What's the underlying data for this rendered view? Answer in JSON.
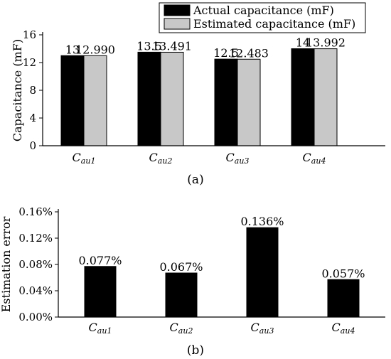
{
  "chart_data": [
    {
      "type": "bar",
      "panel_label": "(a)",
      "ylabel": "Capacitance (mF)",
      "ylim": [
        0,
        16
      ],
      "yticks": [
        "0",
        "4",
        "8",
        "12",
        "16"
      ],
      "categories": [
        {
          "base": "C",
          "sub": "au1"
        },
        {
          "base": "C",
          "sub": "au2"
        },
        {
          "base": "C",
          "sub": "au3"
        },
        {
          "base": "C",
          "sub": "au4"
        }
      ],
      "series": [
        {
          "name": "Actual capacitance (mF)",
          "color": "#000000",
          "values": [
            13,
            13.5,
            12.5,
            14
          ],
          "labels": [
            "13",
            "13.5",
            "12.5",
            "14"
          ]
        },
        {
          "name": "Estimated capacitance (mF)",
          "color": "#c8c8c8",
          "values": [
            12.99,
            13.491,
            12.483,
            13.992
          ],
          "labels": [
            "12.990",
            "13.491",
            "12.483",
            "13.992"
          ]
        }
      ],
      "legend": "top-right"
    },
    {
      "type": "bar",
      "panel_label": "(b)",
      "ylabel": "Estimation error",
      "ylim": [
        0,
        0.16
      ],
      "yticks": [
        "0.00%",
        "0.04%",
        "0.08%",
        "0.12%",
        "0.16%"
      ],
      "categories": [
        {
          "base": "C",
          "sub": "au1"
        },
        {
          "base": "C",
          "sub": "au2"
        },
        {
          "base": "C",
          "sub": "au3"
        },
        {
          "base": "C",
          "sub": "au4"
        }
      ],
      "series": [
        {
          "color": "#000000",
          "values": [
            0.077,
            0.067,
            0.136,
            0.057
          ],
          "labels": [
            "0.077%",
            "0.067%",
            "0.136%",
            "0.057%"
          ]
        }
      ]
    }
  ]
}
